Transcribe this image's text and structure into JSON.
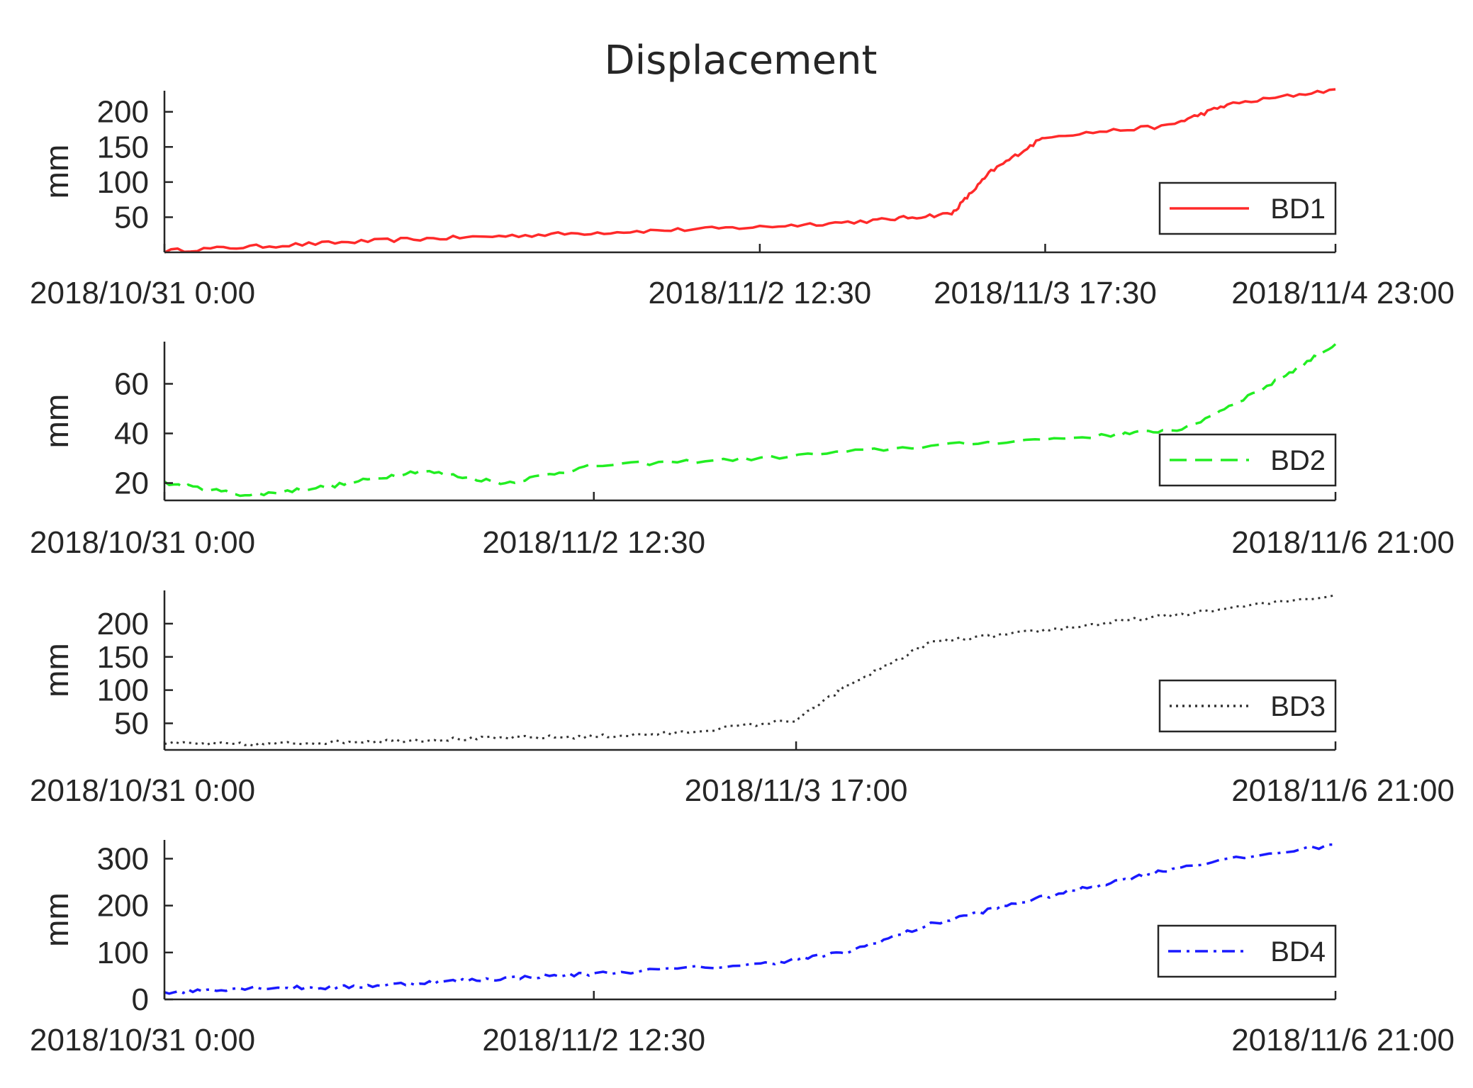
{
  "figure": {
    "title": "Displacement"
  },
  "colors": {
    "BD1": "#ff2a2a",
    "BD2": "#22ee22",
    "BD3": "#333333",
    "BD4": "#1a1aff",
    "axis": "#262626"
  },
  "chart_data": [
    {
      "type": "line",
      "title": "Displacement",
      "ylabel": "mm",
      "ylim": [
        0,
        230
      ],
      "yticks": [
        50,
        100,
        150,
        200
      ],
      "x_range": [
        "2018/10/31 0:00",
        "2018/11/4 23:00"
      ],
      "xticks": [
        "2018/10/31 0:00",
        "2018/11/2  12:30",
        "2018/11/3 17:30",
        "2018/11/4 23:00"
      ],
      "legend": "bottom-right",
      "series": [
        {
          "name": "BD1",
          "line_style": "solid",
          "x": [
            "2018/10/31 0:00",
            "2018/10/31 12:00",
            "2018/11/1 0:00",
            "2018/11/1 12:00",
            "2018/11/2 0:00",
            "2018/11/2 12:30",
            "2018/11/3 0:00",
            "2018/11/3 8:00",
            "2018/11/3 12:00",
            "2018/11/3 17:30",
            "2018/11/4 6:00",
            "2018/11/4 12:00",
            "2018/11/4 23:00"
          ],
          "y": [
            2,
            10,
            18,
            24,
            30,
            36,
            45,
            55,
            115,
            165,
            180,
            210,
            232
          ]
        }
      ]
    },
    {
      "type": "line",
      "ylabel": "mm",
      "ylim": [
        13,
        77
      ],
      "yticks": [
        20,
        40,
        60
      ],
      "x_range": [
        "2018/10/31 0:00",
        "2018/11/6  21:00"
      ],
      "xticks": [
        "2018/10/31 0:00",
        "2018/11/2  12:30",
        "2018/11/6  21:00"
      ],
      "legend": "bottom-right",
      "series": [
        {
          "name": "BD2",
          "line_style": "dashed",
          "x": [
            "2018/10/31 0:00",
            "2018/10/31 12:00",
            "2018/11/1 0:00",
            "2018/11/1 12:00",
            "2018/11/2 0:00",
            "2018/11/2 12:30",
            "2018/11/3 12:00",
            "2018/11/4 12:00",
            "2018/11/5 12:00",
            "2018/11/6 0:00",
            "2018/11/6 12:00",
            "2018/11/6 21:00"
          ],
          "y": [
            20,
            15,
            19,
            25,
            20,
            27,
            30,
            35,
            39,
            42,
            60,
            76
          ]
        }
      ]
    },
    {
      "type": "line",
      "ylabel": "mm",
      "ylim": [
        10,
        250
      ],
      "yticks": [
        50,
        100,
        150,
        200
      ],
      "x_range": [
        "2018/10/31 0:00",
        "2018/11/6  21:00"
      ],
      "xticks": [
        "2018/10/31 0:00",
        "2018/11/3 17:00",
        "2018/11/6  21:00"
      ],
      "legend": "bottom-right",
      "series": [
        {
          "name": "BD3",
          "line_style": "dotted",
          "x": [
            "2018/10/31 0:00",
            "2018/10/31 12:00",
            "2018/11/1 0:00",
            "2018/11/1 12:00",
            "2018/11/2 0:00",
            "2018/11/2 12:30",
            "2018/11/3 0:00",
            "2018/11/3 17:00",
            "2018/11/4 0:00",
            "2018/11/4 12:00",
            "2018/11/5 0:00",
            "2018/11/5 12:00",
            "2018/11/6 0:00",
            "2018/11/6 21:00"
          ],
          "y": [
            20,
            18,
            22,
            25,
            28,
            30,
            35,
            55,
            105,
            172,
            185,
            200,
            215,
            243
          ]
        }
      ]
    },
    {
      "type": "line",
      "ylabel": "mm",
      "ylim": [
        0,
        340
      ],
      "yticks": [
        0,
        100,
        200,
        300
      ],
      "x_range": [
        "2018/10/31 0:00",
        "2018/11/6  21:00"
      ],
      "xticks": [
        "2018/10/31 0:00",
        "2018/11/2  12:30",
        "2018/11/6  21:00"
      ],
      "legend": "bottom-right",
      "series": [
        {
          "name": "BD4",
          "line_style": "dashdot",
          "x": [
            "2018/10/31 0:00",
            "2018/10/31 12:00",
            "2018/11/1 0:00",
            "2018/11/1 12:00",
            "2018/11/2 0:00",
            "2018/11/2 12:30",
            "2018/11/3 12:00",
            "2018/11/4 0:00",
            "2018/11/4 12:00",
            "2018/11/5 0:00",
            "2018/11/5 12:00",
            "2018/11/6 0:00",
            "2018/11/6 21:00"
          ],
          "y": [
            15,
            25,
            25,
            35,
            45,
            55,
            75,
            100,
            160,
            205,
            245,
            285,
            330
          ]
        }
      ]
    }
  ]
}
